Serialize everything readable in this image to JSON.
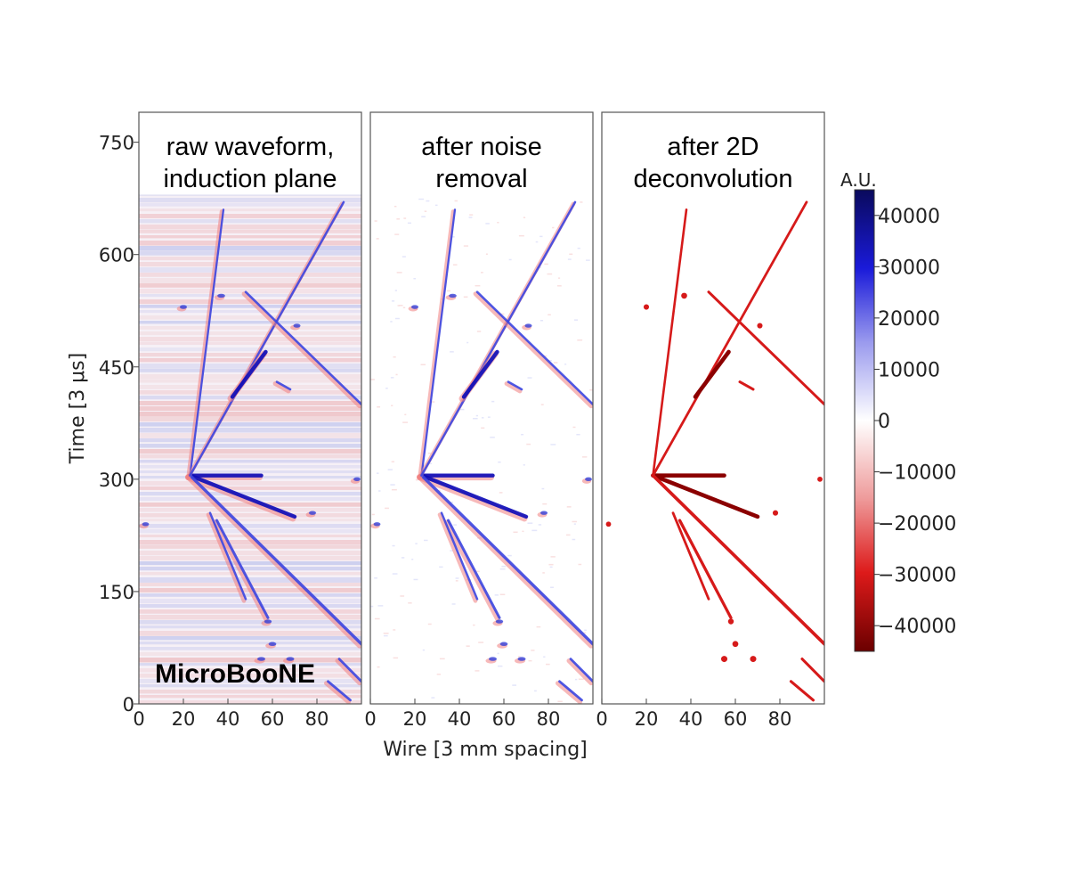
{
  "chart_data": {
    "type": "heatmap",
    "brand": "MicroBooNE",
    "xlabel": "Wire [3 mm spacing]",
    "ylabel": "Time [3 μs]",
    "xlim": [
      0,
      100
    ],
    "ylim": [
      0,
      790
    ],
    "x_ticks": [
      "0",
      "20",
      "40",
      "60",
      "80"
    ],
    "y_ticks": [
      "0",
      "150",
      "300",
      "450",
      "600",
      "750"
    ],
    "x_tick_values": [
      0,
      20,
      40,
      60,
      80
    ],
    "y_tick_values": [
      0,
      150,
      300,
      450,
      600,
      750
    ],
    "panels": [
      {
        "title_lines": [
          "raw waveform,",
          "induction plane"
        ],
        "style": "bipolar_noisy",
        "title_box_bottom": 680
      },
      {
        "title_lines": [
          "after noise",
          "removal"
        ],
        "style": "bipolar",
        "title_box_bottom": 675
      },
      {
        "title_lines": [
          "after 2D",
          "deconvolution"
        ],
        "style": "unipolar",
        "title_box_bottom": 0
      }
    ],
    "colorbar": {
      "label": "A.U.",
      "min": -45000,
      "max": 45000,
      "ticks": [
        "40000",
        "30000",
        "20000",
        "10000",
        "0",
        "−10000",
        "−20000",
        "−30000",
        "−40000"
      ],
      "tick_values": [
        40000,
        30000,
        20000,
        10000,
        0,
        -10000,
        -20000,
        -30000,
        -40000
      ],
      "colors": [
        "#0a0a5c",
        "#1a1ad9",
        "#9a9aee",
        "#ffffff",
        "#ee9a9a",
        "#dd1a1a",
        "#6b0000"
      ]
    },
    "tracks": [
      {
        "points": [
          [
            23,
            305
          ],
          [
            55,
            305
          ]
        ],
        "strength": 1.0
      },
      {
        "points": [
          [
            23,
            305
          ],
          [
            70,
            250
          ]
        ],
        "strength": 1.0
      },
      {
        "points": [
          [
            23,
            305
          ],
          [
            100,
            80
          ]
        ],
        "strength": 0.7
      },
      {
        "points": [
          [
            23,
            305
          ],
          [
            38,
            660
          ]
        ],
        "strength": 0.35
      },
      {
        "points": [
          [
            23,
            305
          ],
          [
            92,
            670
          ]
        ],
        "strength": 0.4
      },
      {
        "points": [
          [
            48,
            550
          ],
          [
            100,
            400
          ]
        ],
        "strength": 0.45
      },
      {
        "points": [
          [
            42,
            410
          ],
          [
            57,
            470
          ]
        ],
        "strength": 1.0
      },
      {
        "points": [
          [
            35,
            245
          ],
          [
            58,
            115
          ]
        ],
        "strength": 0.55
      },
      {
        "points": [
          [
            32,
            255
          ],
          [
            48,
            140
          ]
        ],
        "strength": 0.4
      },
      {
        "points": [
          [
            62,
            430
          ],
          [
            68,
            420
          ]
        ],
        "strength": 0.45
      },
      {
        "points": [
          [
            90,
            60
          ],
          [
            100,
            30
          ]
        ],
        "strength": 0.5
      },
      {
        "points": [
          [
            85,
            30
          ],
          [
            95,
            5
          ]
        ],
        "strength": 0.5
      }
    ],
    "blobs": [
      {
        "x": 55,
        "y": 60,
        "strength": 0.5
      },
      {
        "x": 68,
        "y": 60,
        "strength": 0.5
      },
      {
        "x": 60,
        "y": 80,
        "strength": 0.45
      },
      {
        "x": 58,
        "y": 110,
        "strength": 0.4
      },
      {
        "x": 37,
        "y": 545,
        "strength": 0.45
      },
      {
        "x": 20,
        "y": 530,
        "strength": 0.35
      },
      {
        "x": 71,
        "y": 505,
        "strength": 0.35
      },
      {
        "x": 3,
        "y": 240,
        "strength": 0.3
      },
      {
        "x": 78,
        "y": 255,
        "strength": 0.35
      },
      {
        "x": 98,
        "y": 300,
        "strength": 0.3
      }
    ]
  }
}
